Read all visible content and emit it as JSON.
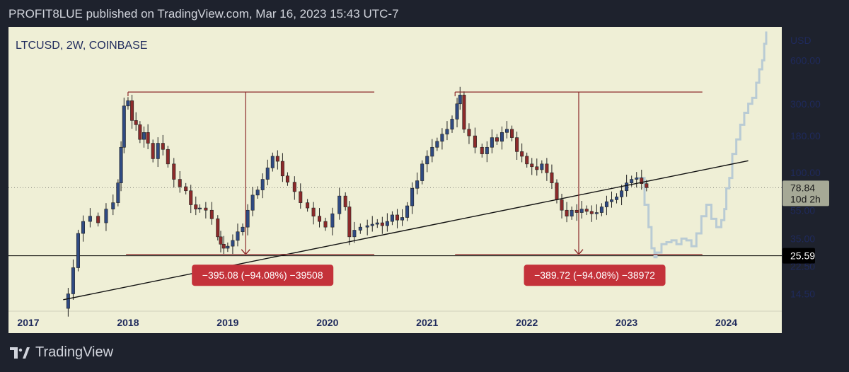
{
  "header": {
    "text": "PROFIT8LUE published on TradingView.com, Mar 16, 2023 15:43 UTC-7"
  },
  "footer": {
    "brand": "TradingView",
    "logo_icon": "tradingview-logo-icon"
  },
  "colors": {
    "page_bg": "#1e222d",
    "chart_bg": "#efefd6",
    "up_candle": "#2f4a82",
    "down_candle": "#8c2a2a",
    "measure_line": "#8c2a2a",
    "label_bg": "#c4323a",
    "projection": "#b9cbd4",
    "last_price_bg": "#a6a996",
    "current_price_bg": "#000000"
  },
  "chart_data": {
    "type": "candlestick",
    "title": "LTCUSD, 2W, COINBASE",
    "currency": "USD",
    "scale": "log",
    "ylim": [
      11,
      1000
    ],
    "xlim": [
      2017.0,
      2024.45
    ],
    "y_ticks": [
      "600.00",
      "300.00",
      "180.00",
      "100.00",
      "55.00",
      "35.00",
      "22.50",
      "14.50"
    ],
    "x_ticks": [
      "2017",
      "2018",
      "2019",
      "2020",
      "2021",
      "2022",
      "2023",
      "2024"
    ],
    "last_price": {
      "value": "78.84",
      "countdown": "10d 2h"
    },
    "marker_price": {
      "value": "25.59"
    },
    "path_points": [
      [
        2017.35,
        11.5
      ],
      [
        2017.4,
        14.5
      ],
      [
        2017.45,
        22
      ],
      [
        2017.5,
        38
      ],
      [
        2017.55,
        46
      ],
      [
        2017.62,
        50
      ],
      [
        2017.7,
        45
      ],
      [
        2017.78,
        56
      ],
      [
        2017.85,
        62
      ],
      [
        2017.9,
        85
      ],
      [
        2017.93,
        150
      ],
      [
        2017.96,
        290
      ],
      [
        2018.0,
        315
      ],
      [
        2018.04,
        230
      ],
      [
        2018.08,
        215
      ],
      [
        2018.12,
        170
      ],
      [
        2018.16,
        190
      ],
      [
        2018.2,
        160
      ],
      [
        2018.25,
        125
      ],
      [
        2018.3,
        160
      ],
      [
        2018.35,
        145
      ],
      [
        2018.4,
        115
      ],
      [
        2018.46,
        90
      ],
      [
        2018.52,
        80
      ],
      [
        2018.58,
        75
      ],
      [
        2018.63,
        60
      ],
      [
        2018.68,
        56
      ],
      [
        2018.72,
        57
      ],
      [
        2018.78,
        55
      ],
      [
        2018.84,
        48
      ],
      [
        2018.9,
        36
      ],
      [
        2018.93,
        32
      ],
      [
        2018.96,
        30
      ],
      [
        2019.0,
        31
      ],
      [
        2019.05,
        34
      ],
      [
        2019.1,
        39
      ],
      [
        2019.15,
        42
      ],
      [
        2019.2,
        55
      ],
      [
        2019.25,
        70
      ],
      [
        2019.3,
        76
      ],
      [
        2019.35,
        90
      ],
      [
        2019.4,
        108
      ],
      [
        2019.45,
        130
      ],
      [
        2019.5,
        120
      ],
      [
        2019.55,
        95
      ],
      [
        2019.6,
        86
      ],
      [
        2019.67,
        74
      ],
      [
        2019.73,
        62
      ],
      [
        2019.8,
        57
      ],
      [
        2019.86,
        50
      ],
      [
        2019.92,
        46
      ],
      [
        2019.98,
        42
      ],
      [
        2020.05,
        52
      ],
      [
        2020.12,
        69
      ],
      [
        2020.18,
        58
      ],
      [
        2020.22,
        36
      ],
      [
        2020.27,
        40
      ],
      [
        2020.33,
        42
      ],
      [
        2020.4,
        43
      ],
      [
        2020.45,
        44
      ],
      [
        2020.5,
        45
      ],
      [
        2020.55,
        43
      ],
      [
        2020.6,
        46
      ],
      [
        2020.65,
        51
      ],
      [
        2020.7,
        47
      ],
      [
        2020.75,
        49
      ],
      [
        2020.8,
        59
      ],
      [
        2020.85,
        78
      ],
      [
        2020.9,
        88
      ],
      [
        2020.95,
        115
      ],
      [
        2021.0,
        130
      ],
      [
        2021.05,
        150
      ],
      [
        2021.1,
        165
      ],
      [
        2021.15,
        185
      ],
      [
        2021.2,
        200
      ],
      [
        2021.25,
        235
      ],
      [
        2021.3,
        300
      ],
      [
        2021.33,
        345
      ],
      [
        2021.37,
        200
      ],
      [
        2021.42,
        180
      ],
      [
        2021.48,
        150
      ],
      [
        2021.55,
        135
      ],
      [
        2021.6,
        150
      ],
      [
        2021.65,
        175
      ],
      [
        2021.7,
        165
      ],
      [
        2021.75,
        190
      ],
      [
        2021.8,
        200
      ],
      [
        2021.85,
        175
      ],
      [
        2021.9,
        140
      ],
      [
        2021.95,
        130
      ],
      [
        2022.0,
        115
      ],
      [
        2022.05,
        110
      ],
      [
        2022.1,
        105
      ],
      [
        2022.15,
        115
      ],
      [
        2022.2,
        100
      ],
      [
        2022.25,
        85
      ],
      [
        2022.3,
        65
      ],
      [
        2022.35,
        55
      ],
      [
        2022.4,
        50
      ],
      [
        2022.45,
        55
      ],
      [
        2022.5,
        53
      ],
      [
        2022.55,
        56
      ],
      [
        2022.6,
        54
      ],
      [
        2022.65,
        52
      ],
      [
        2022.7,
        53
      ],
      [
        2022.75,
        58
      ],
      [
        2022.8,
        63
      ],
      [
        2022.85,
        65
      ],
      [
        2022.9,
        68
      ],
      [
        2022.95,
        75
      ],
      [
        2023.0,
        85
      ],
      [
        2023.05,
        90
      ],
      [
        2023.1,
        92
      ],
      [
        2023.15,
        84
      ],
      [
        2023.2,
        78.84
      ]
    ],
    "projection_points": [
      [
        2023.1,
        92
      ],
      [
        2023.18,
        60
      ],
      [
        2023.22,
        42
      ],
      [
        2023.25,
        30
      ],
      [
        2023.28,
        26
      ],
      [
        2023.3,
        28
      ],
      [
        2023.35,
        32
      ],
      [
        2023.4,
        33
      ],
      [
        2023.45,
        34
      ],
      [
        2023.5,
        32
      ],
      [
        2023.55,
        35
      ],
      [
        2023.6,
        34
      ],
      [
        2023.65,
        31
      ],
      [
        2023.7,
        38
      ],
      [
        2023.75,
        50
      ],
      [
        2023.8,
        60
      ],
      [
        2023.85,
        48
      ],
      [
        2023.9,
        42
      ],
      [
        2023.95,
        47
      ],
      [
        2023.98,
        56
      ],
      [
        2024.0,
        78
      ],
      [
        2024.03,
        92
      ],
      [
        2024.06,
        135
      ],
      [
        2024.1,
        170
      ],
      [
        2024.14,
        215
      ],
      [
        2024.18,
        260
      ],
      [
        2024.22,
        300
      ],
      [
        2024.26,
        330
      ],
      [
        2024.3,
        420
      ],
      [
        2024.33,
        520
      ],
      [
        2024.36,
        600
      ],
      [
        2024.38,
        780
      ],
      [
        2024.4,
        950
      ]
    ],
    "trendline": {
      "x1": 2017.35,
      "y1": 13.2,
      "x2": 2024.22,
      "y2": 121
    },
    "measurements": [
      {
        "top": {
          "x1": 2018.0,
          "x2": 2020.47,
          "y": 362
        },
        "bottom": {
          "x1": 2017.98,
          "x2": 2020.47,
          "y": 27.2
        },
        "arrow_x": 2019.18,
        "label": "−395.08 (−94.08%) −39508",
        "label_pos": {
          "x": 2019.35,
          "y": 19.5
        }
      },
      {
        "top": {
          "x1": 2021.28,
          "x2": 2023.76,
          "y": 362
        },
        "bottom": {
          "x1": 2021.28,
          "x2": 2023.76,
          "y": 27.2
        },
        "arrow_x": 2022.52,
        "label": "−389.72 (−94.08%) −38972",
        "label_pos": {
          "x": 2022.68,
          "y": 19.5
        }
      }
    ],
    "dotted_level": 78.84,
    "horizontal_level": 26.6
  }
}
